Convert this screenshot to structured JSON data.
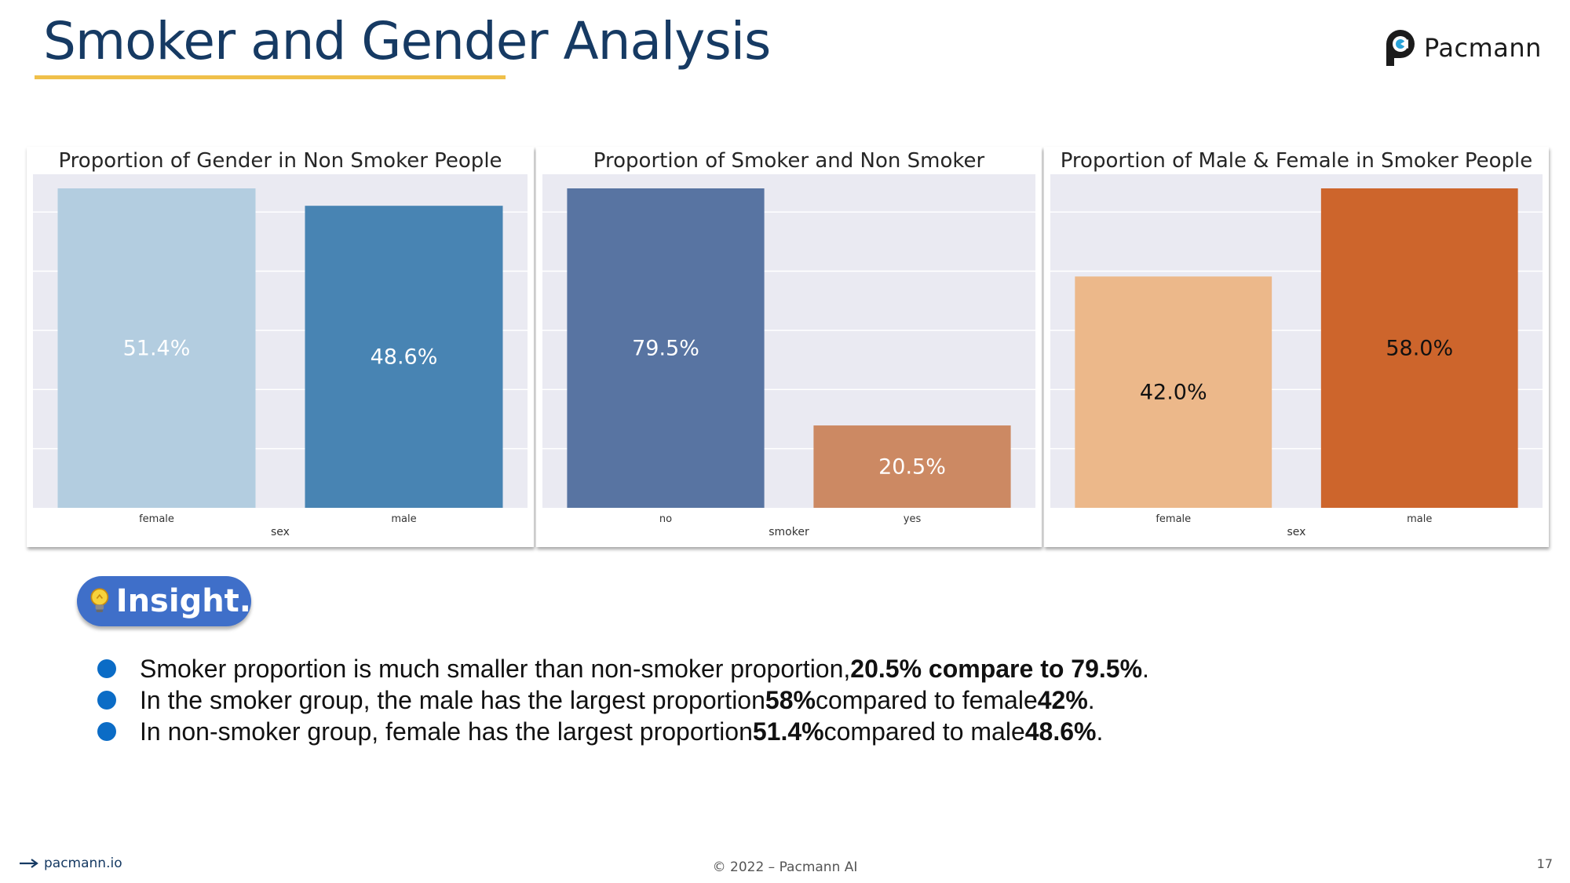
{
  "slide": {
    "title": "Smoker and Gender Analysis",
    "brand": "Pacmann",
    "insight_label": "Insight.",
    "bullets": [
      {
        "pre": "Smoker proportion is much smaller than non-smoker proportion, ",
        "b1": "20.5% compare to 79.5%",
        "mid": ".",
        "b2": "",
        "post": ""
      },
      {
        "pre": "In the smoker group, the male has the largest proportion ",
        "b1": "58%",
        "mid": " compared to female ",
        "b2": "42%",
        "post": "."
      },
      {
        "pre": "In non-smoker group, female has the largest proportion ",
        "b1": "51.4%",
        "mid": " compared to male ",
        "b2": "48.6%",
        "post": "."
      }
    ],
    "footer_left": "pacmann.io",
    "footer_center": "© 2022 – Pacmann AI",
    "page_number": "17"
  },
  "chart_data": [
    {
      "type": "bar",
      "title": "Proportion of Gender in Non Smoker People",
      "xlabel": "sex",
      "ylabel": "",
      "categories": [
        "female",
        "male"
      ],
      "values": [
        51.4,
        48.6
      ],
      "labels": [
        "51.4%",
        "48.6%"
      ],
      "colors": [
        "#b3cde0",
        "#4884b3"
      ],
      "label_colors": [
        "#ffffff",
        "#ffffff"
      ],
      "ylim": [
        0,
        51.4
      ],
      "grid": true,
      "background": "#eaeaf2"
    },
    {
      "type": "bar",
      "title": "Proportion of Smoker and Non Smoker",
      "xlabel": "smoker",
      "ylabel": "",
      "categories": [
        "no",
        "yes"
      ],
      "values": [
        79.5,
        20.5
      ],
      "labels": [
        "79.5%",
        "20.5%"
      ],
      "colors": [
        "#5874a2",
        "#cc8963"
      ],
      "label_colors": [
        "#ffffff",
        "#ffffff"
      ],
      "ylim": [
        0,
        79.5
      ],
      "grid": true,
      "background": "#eaeaf2"
    },
    {
      "type": "bar",
      "title": "Proportion of Male & Female in Smoker People",
      "xlabel": "sex",
      "ylabel": "",
      "categories": [
        "female",
        "male"
      ],
      "values": [
        42.0,
        58.0
      ],
      "labels": [
        "42.0%",
        "58.0%"
      ],
      "colors": [
        "#ecb88a",
        "#cd652c"
      ],
      "label_colors": [
        "#111111",
        "#111111"
      ],
      "ylim": [
        0,
        58.0
      ],
      "grid": true,
      "background": "#eaeaf2"
    }
  ]
}
